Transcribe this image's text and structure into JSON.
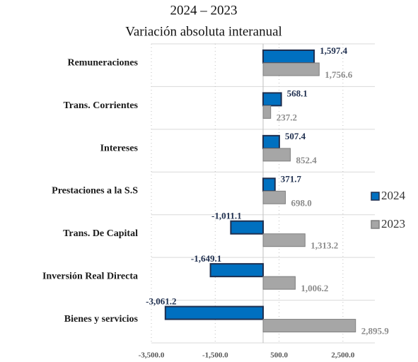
{
  "chart_data": {
    "type": "hbar",
    "title": "2024 – 2023",
    "subtitle": "Variación absoluta interanual",
    "categories": [
      "Remuneraciones",
      "Trans. Corrientes",
      "Intereses",
      "Prestaciones a la S.S",
      "Trans. De Capital",
      "Inversión Real Directa",
      "Bienes y servicios"
    ],
    "series": [
      {
        "name": "2024",
        "color": "#0070c0",
        "label_color": "#1f2f4f",
        "values": [
          1597.4,
          568.1,
          507.4,
          371.7,
          -1011.1,
          -1649.1,
          -3061.2
        ],
        "value_labels": [
          "1,597.4",
          "568.1",
          "507.4",
          "371.7",
          "-1,011.1",
          "-1,649.1",
          "-3,061.2"
        ]
      },
      {
        "name": "2023",
        "color": "#a6a6a6",
        "label_color": "#8c8c8c",
        "values": [
          1756.6,
          237.2,
          852.4,
          698.0,
          1313.2,
          1006.2,
          2895.9
        ],
        "value_labels": [
          "1,756.6",
          "237.2",
          "852.4",
          "698.0",
          "1,313.2",
          "1,006.2",
          "2,895.9"
        ]
      }
    ],
    "xlim": [
      -3500,
      3500
    ],
    "xticks": [
      {
        "value": -3500,
        "label": "-3,500.0"
      },
      {
        "value": -1500,
        "label": "-1,500.0"
      },
      {
        "value": 500,
        "label": "500.0"
      },
      {
        "value": 2500,
        "label": "2,500.0"
      }
    ],
    "grid": true,
    "legend": "right"
  }
}
